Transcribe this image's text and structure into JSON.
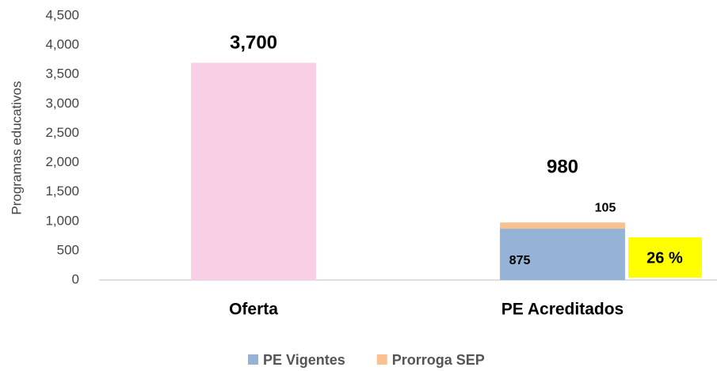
{
  "chart_data": {
    "type": "stacked_bar",
    "y_label": "Programas educativos",
    "categories": [
      "Oferta",
      "PE Acreditados"
    ],
    "series": [
      {
        "color": "#f9cfe6",
        "values": [
          3700,
          null
        ]
      },
      {
        "name": "PE Vigentes",
        "color": "#95b3d7",
        "values": [
          null,
          875
        ]
      },
      {
        "name": "Prorroga SEP",
        "color": "#fac090",
        "values": [
          null,
          105
        ]
      }
    ],
    "totals": [
      3700,
      980
    ],
    "total_labels": [
      "3,700",
      "980"
    ],
    "annotation": "26 %",
    "annotation_color": "#ffff00",
    "ylim": [
      0,
      4500
    ],
    "yticks": [
      0,
      500,
      {
        "value": 1000,
        "label": "1,000"
      },
      {
        "value": 1500,
        "label": "1,500"
      },
      {
        "value": 2000,
        "label": "2,000"
      },
      {
        "value": 2500,
        "label": "2,500"
      },
      {
        "value": 3000,
        "label": "3,000"
      },
      {
        "value": 3500,
        "label": "3,500"
      },
      {
        "value": 4000,
        "label": "4,000"
      },
      {
        "value": 4500,
        "label": "4,500"
      }
    ],
    "grid": false
  }
}
